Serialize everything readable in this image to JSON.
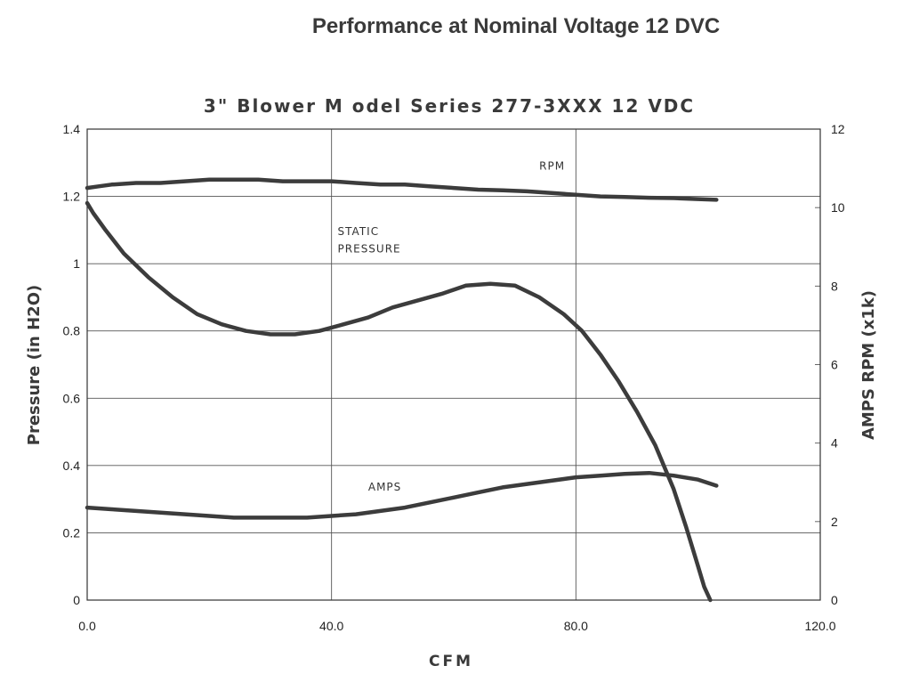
{
  "page_title": "Performance at Nominal Voltage 12 DVC",
  "chart_data": {
    "type": "line",
    "title": "3\" Blower M odel Series 277-3XXX 12 VDC",
    "xlabel": "CFM",
    "ylabel": "Pressure (in H2O)",
    "y2label": "AMPS RPM (x1k)",
    "xlim": [
      0,
      120
    ],
    "ylim": [
      0,
      1.4
    ],
    "y2lim": [
      0,
      12
    ],
    "x_ticks": [
      0,
      40,
      80,
      120
    ],
    "x_tick_labels": [
      "0.0",
      "40.0",
      "80.0",
      "120.0"
    ],
    "y_ticks": [
      0,
      0.2,
      0.4,
      0.6,
      0.8,
      1,
      1.2,
      1.4
    ],
    "y_tick_labels": [
      "0",
      "0.2",
      "0.4",
      "0.6",
      "0.8",
      "1",
      "1.2",
      "1.4"
    ],
    "y2_ticks": [
      0,
      2,
      4,
      6,
      8,
      10,
      12
    ],
    "y2_tick_labels": [
      "0",
      "2",
      "4",
      "6",
      "8",
      "10",
      "12"
    ],
    "grid": true,
    "series": [
      {
        "name": "RPM",
        "axis": "y",
        "x": [
          0,
          2,
          4,
          8,
          12,
          16,
          20,
          24,
          28,
          32,
          36,
          40,
          44,
          48,
          52,
          56,
          60,
          64,
          68,
          72,
          76,
          80,
          84,
          88,
          92,
          96,
          100,
          103
        ],
        "y": [
          1.225,
          1.23,
          1.235,
          1.24,
          1.24,
          1.245,
          1.25,
          1.25,
          1.25,
          1.245,
          1.245,
          1.245,
          1.24,
          1.235,
          1.235,
          1.23,
          1.225,
          1.22,
          1.218,
          1.215,
          1.21,
          1.205,
          1.2,
          1.198,
          1.196,
          1.195,
          1.192,
          1.19
        ]
      },
      {
        "name": "STATIC PRESSURE",
        "axis": "y",
        "x": [
          0,
          1,
          3,
          6,
          10,
          14,
          18,
          22,
          26,
          30,
          34,
          38,
          42,
          46,
          50,
          54,
          58,
          62,
          66,
          70,
          74,
          78,
          81,
          84,
          87,
          90,
          93,
          96,
          98,
          100,
          101,
          102
        ],
        "y": [
          1.18,
          1.15,
          1.1,
          1.03,
          0.96,
          0.9,
          0.85,
          0.82,
          0.8,
          0.79,
          0.79,
          0.8,
          0.82,
          0.84,
          0.87,
          0.89,
          0.91,
          0.935,
          0.94,
          0.935,
          0.9,
          0.85,
          0.8,
          0.73,
          0.65,
          0.56,
          0.46,
          0.33,
          0.22,
          0.1,
          0.04,
          0.0
        ]
      },
      {
        "name": "AMPS",
        "axis": "y",
        "x": [
          0,
          4,
          8,
          12,
          16,
          20,
          24,
          28,
          32,
          36,
          40,
          44,
          48,
          52,
          56,
          60,
          64,
          68,
          72,
          76,
          80,
          84,
          88,
          92,
          96,
          100,
          103
        ],
        "y": [
          0.275,
          0.27,
          0.265,
          0.26,
          0.255,
          0.25,
          0.245,
          0.245,
          0.245,
          0.245,
          0.25,
          0.255,
          0.265,
          0.275,
          0.29,
          0.305,
          0.32,
          0.335,
          0.345,
          0.355,
          0.365,
          0.37,
          0.375,
          0.378,
          0.37,
          0.358,
          0.34
        ]
      }
    ],
    "annotations": [
      {
        "text": "RPM",
        "x": 74,
        "y": 1.28
      },
      {
        "text": "STATIC",
        "x": 41,
        "y": 1.085
      },
      {
        "text": "PRESSURE",
        "x": 41,
        "y": 1.033
      },
      {
        "text": "AMPS",
        "x": 46,
        "y": 0.325
      }
    ],
    "colors": {
      "line": "#3c3c3c",
      "grid": "#555555",
      "text": "#222222"
    }
  }
}
